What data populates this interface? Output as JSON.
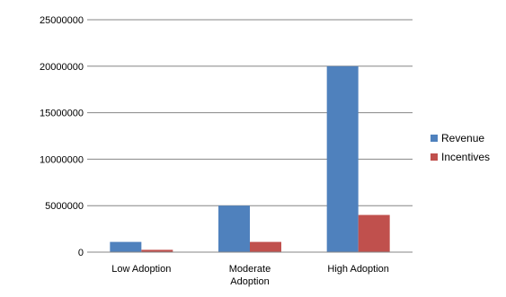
{
  "chart_data": {
    "type": "bar",
    "title": "",
    "xlabel": "",
    "ylabel": "",
    "categories": [
      "Low Adoption",
      "Moderate Adoption",
      "High Adoption"
    ],
    "category_lines": [
      [
        "Low Adoption"
      ],
      [
        "Moderate",
        "Adoption"
      ],
      [
        "High Adoption"
      ]
    ],
    "series": [
      {
        "name": "Revenue",
        "values": [
          1100000,
          5000000,
          20000000
        ],
        "color": "#4F81BD"
      },
      {
        "name": "Incentives",
        "values": [
          250000,
          1100000,
          4000000
        ],
        "color": "#C0504D"
      }
    ],
    "ylim": [
      0,
      25000000
    ],
    "yticks": [
      0,
      5000000,
      10000000,
      15000000,
      20000000,
      25000000
    ],
    "ytick_labels": [
      "0",
      "5000000",
      "10000000",
      "15000000",
      "20000000",
      "25000000"
    ],
    "grid": true,
    "legend_position": "right"
  }
}
